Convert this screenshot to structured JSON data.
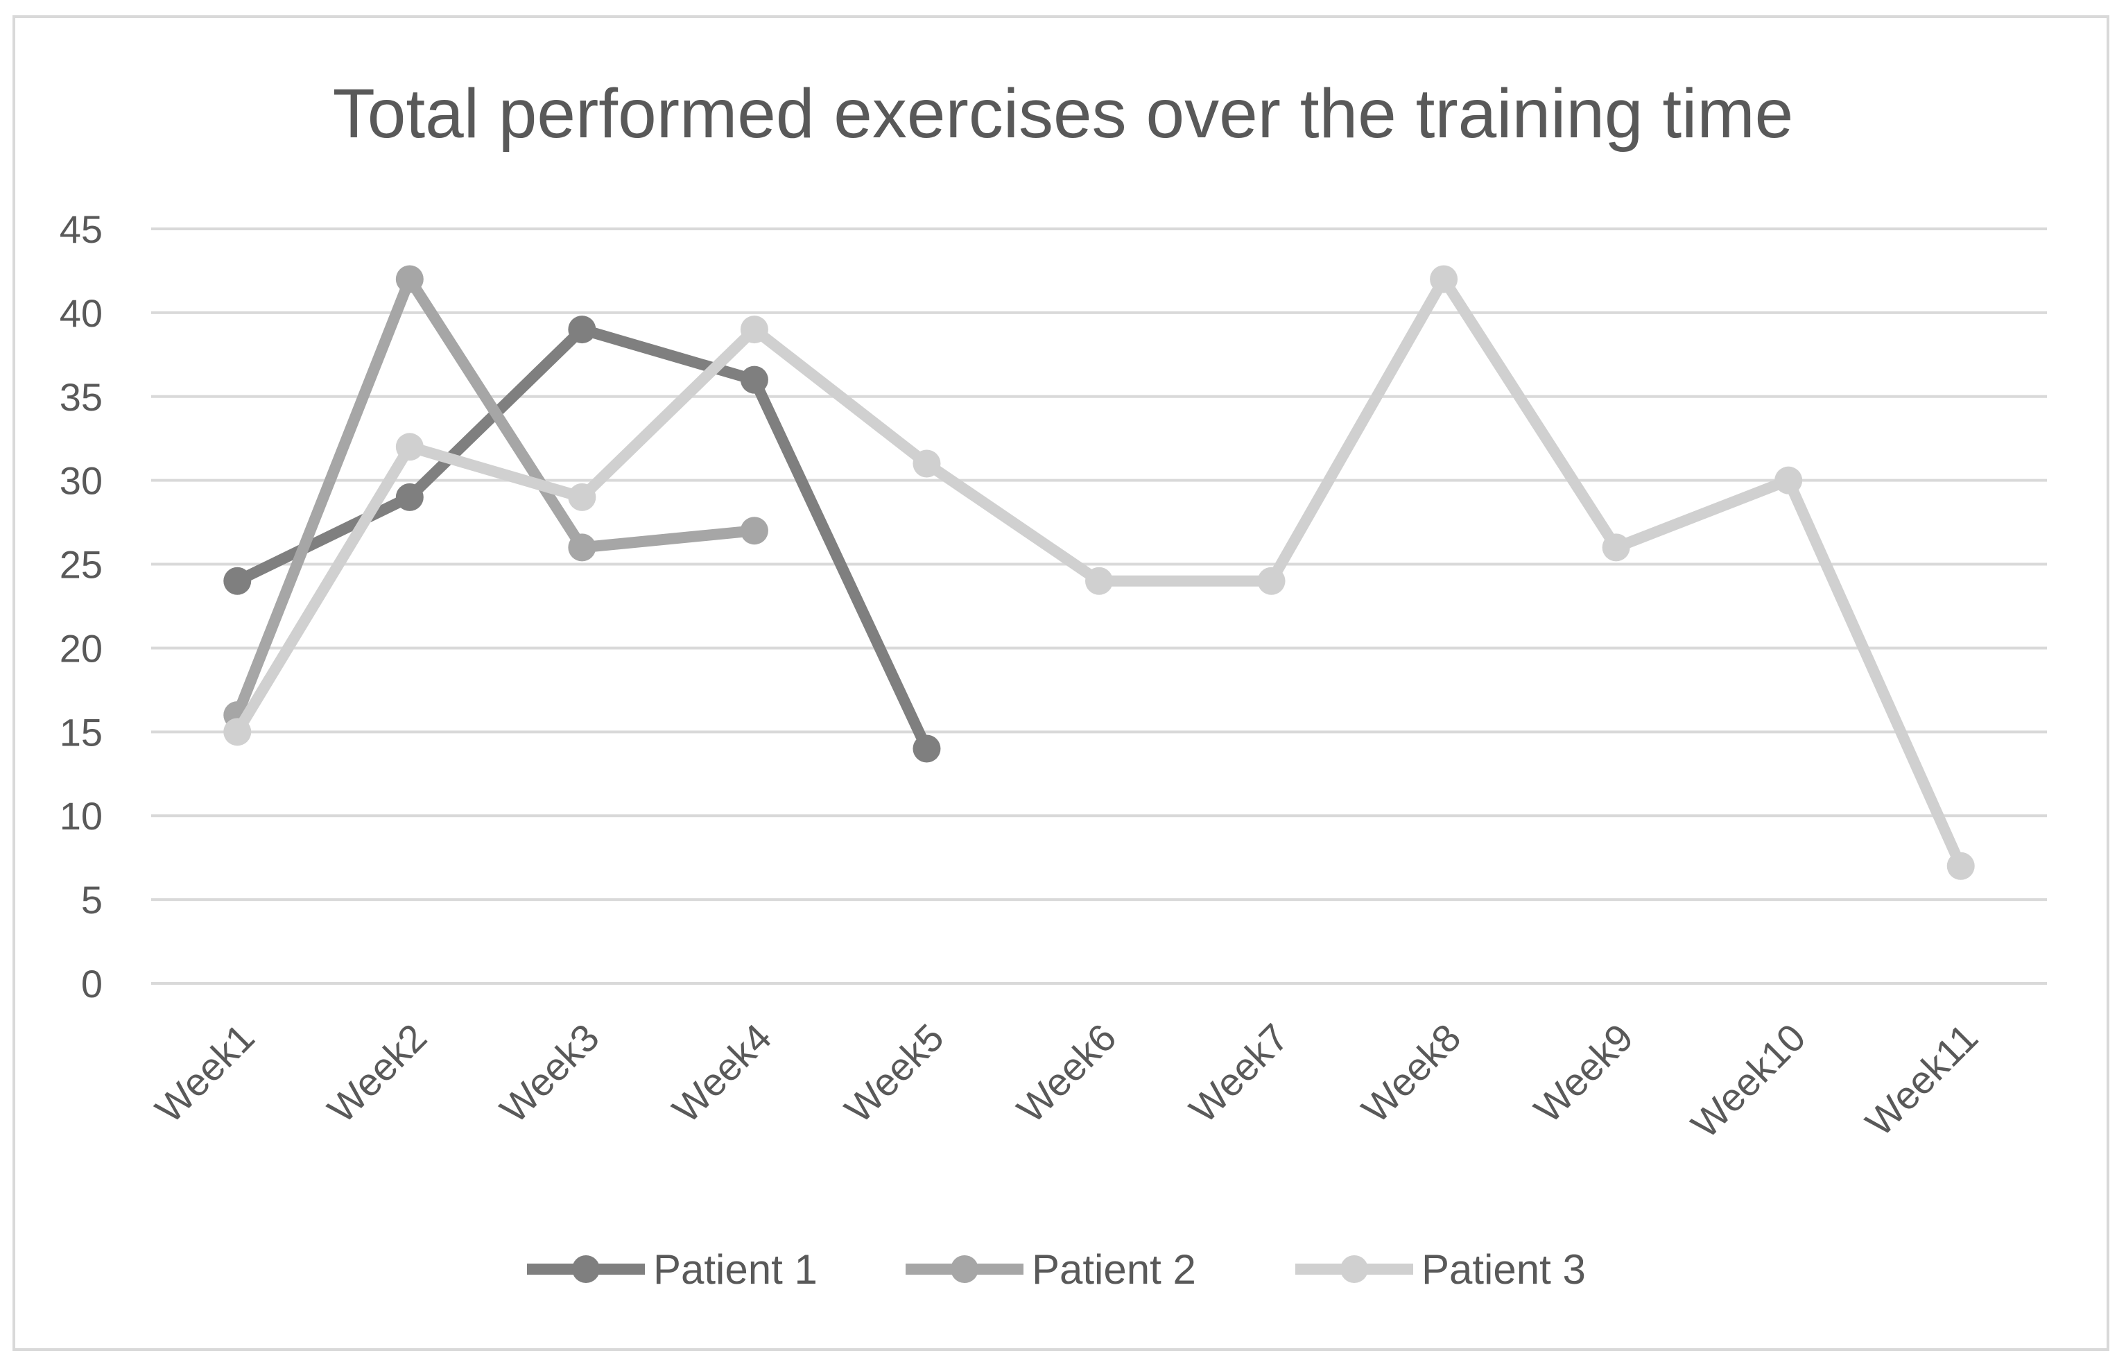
{
  "chart_data": {
    "type": "line",
    "title": "Total performed exercises over the training time",
    "xlabel": "",
    "ylabel": "",
    "categories": [
      "Week1",
      "Week2",
      "Week3",
      "Week4",
      "Week5",
      "Week6",
      "Week7",
      "Week8",
      "Week9",
      "Week10",
      "Week11"
    ],
    "yticks": [
      0,
      5,
      10,
      15,
      20,
      25,
      30,
      35,
      40,
      45
    ],
    "ylim": [
      0,
      45
    ],
    "grid": true,
    "legend_position": "bottom",
    "series": [
      {
        "name": "Patient 1",
        "color": "#7f7f7f",
        "values": [
          24,
          29,
          39,
          36,
          14,
          null,
          null,
          null,
          null,
          null,
          null
        ]
      },
      {
        "name": "Patient 2",
        "color": "#a6a6a6",
        "values": [
          16,
          42,
          26,
          27,
          null,
          null,
          null,
          null,
          null,
          null,
          null
        ]
      },
      {
        "name": "Patient 3",
        "color": "#d0d0d0",
        "values": [
          15,
          32,
          29,
          39,
          31,
          24,
          24,
          42,
          26,
          30,
          7
        ]
      }
    ]
  }
}
